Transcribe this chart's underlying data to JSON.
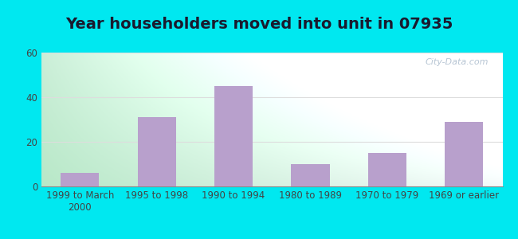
{
  "title": "Year householders moved into unit in 07935",
  "categories": [
    "1999 to March\n2000",
    "1995 to 1998",
    "1990 to 1994",
    "1980 to 1989",
    "1970 to 1979",
    "1969 or earlier"
  ],
  "values": [
    6,
    31,
    45,
    10,
    15,
    29
  ],
  "bar_color": "#b8a0cc",
  "ylim": [
    0,
    60
  ],
  "yticks": [
    0,
    20,
    40,
    60
  ],
  "outer_bg": "#00e8f0",
  "grid_color": "#dddddd",
  "title_fontsize": 14,
  "tick_fontsize": 8.5,
  "watermark": "City-Data.com",
  "grad_left": "#b8e8c8",
  "grad_right": "#f5fafa",
  "bar_width": 0.5
}
